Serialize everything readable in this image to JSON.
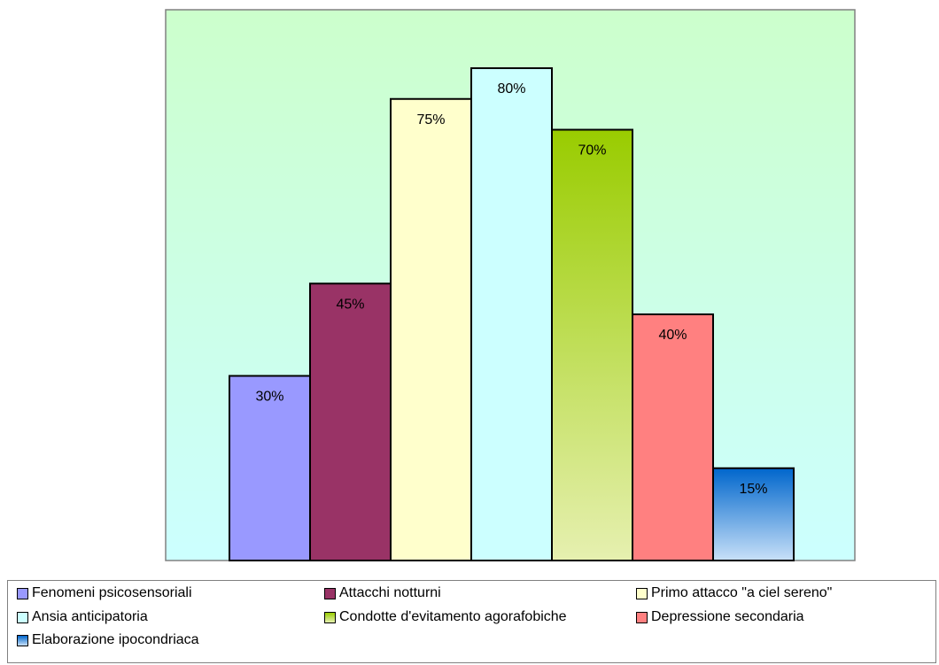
{
  "chart_data": {
    "type": "bar",
    "categories": [
      "Fenomeni psicosensoriali",
      "Attacchi notturni",
      "Primo attacco \"a ciel sereno\"",
      "Ansia anticipatoria",
      "Condotte d'evitamento agorafobiche",
      "Depressione secondaria",
      "Elaborazione ipocondriaca"
    ],
    "values": [
      30,
      45,
      75,
      80,
      70,
      40,
      15
    ],
    "data_labels": [
      "30%",
      "45%",
      "75%",
      "80%",
      "70%",
      "40%",
      "15%"
    ],
    "unit": "%",
    "ylim": [
      0,
      90
    ],
    "grid": false,
    "legend_position": "bottom",
    "plot_background": [
      "#ccffcc",
      "#ccffff"
    ],
    "colors": [
      "#9999ff",
      "#993366",
      "#ffffcc",
      "#ccffff",
      "#99cc00",
      "#ff8080",
      "#0066cc"
    ],
    "gradient_bottom_colors": [
      null,
      null,
      null,
      null,
      "#e6f0b0",
      null,
      "#c8e0f8"
    ]
  }
}
